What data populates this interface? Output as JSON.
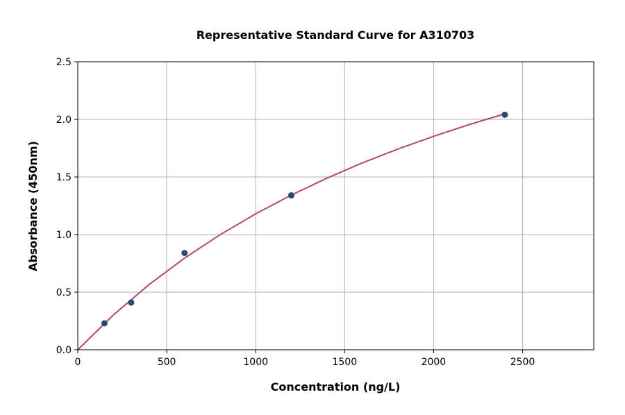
{
  "chart_data": {
    "type": "scatter",
    "title": "Representative Standard Curve for A310703",
    "xlabel": "Concentration (ng/L)",
    "ylabel": "Absorbance (450nm)",
    "xlim": [
      0,
      2900
    ],
    "ylim": [
      0,
      2.5
    ],
    "xticks": [
      "0",
      "500",
      "1000",
      "1500",
      "2000",
      "2500"
    ],
    "yticks": [
      "0.0",
      "0.5",
      "1.0",
      "1.5",
      "2.0",
      "2.5"
    ],
    "grid": true,
    "points": {
      "x": [
        150,
        300,
        600,
        1200,
        2400
      ],
      "y": [
        0.23,
        0.41,
        0.84,
        1.34,
        2.04
      ],
      "color": "#2e4a6b"
    },
    "fit_curve": {
      "x": [
        0,
        200,
        400,
        600,
        800,
        1000,
        1200,
        1400,
        1600,
        1800,
        2000,
        2200,
        2400
      ],
      "y": [
        0,
        0.302,
        0.565,
        0.795,
        0.999,
        1.18,
        1.343,
        1.489,
        1.622,
        1.743,
        1.853,
        1.955,
        2.048
      ],
      "color": "#b5476a"
    }
  }
}
